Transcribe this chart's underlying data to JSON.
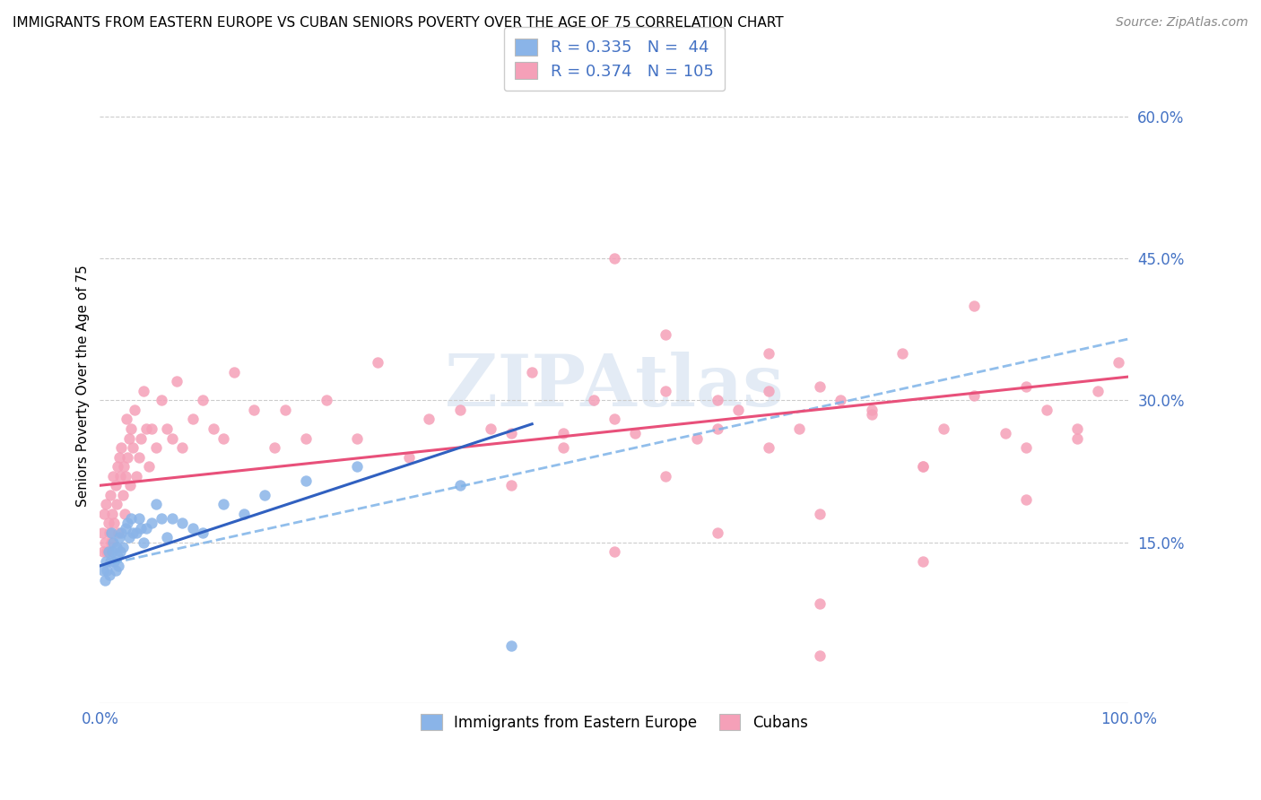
{
  "title": "IMMIGRANTS FROM EASTERN EUROPE VS CUBAN SENIORS POVERTY OVER THE AGE OF 75 CORRELATION CHART",
  "source": "Source: ZipAtlas.com",
  "ylabel": "Seniors Poverty Over the Age of 75",
  "xlim": [
    0,
    1.0
  ],
  "ylim": [
    -0.02,
    0.65
  ],
  "yticks_right": [
    0.15,
    0.3,
    0.45,
    0.6
  ],
  "yticklabels_right": [
    "15.0%",
    "30.0%",
    "45.0%",
    "60.0%"
  ],
  "blue_R": "0.335",
  "blue_N": "44",
  "pink_R": "0.374",
  "pink_N": "105",
  "blue_color": "#8AB4E8",
  "pink_color": "#F5A0B8",
  "trend_blue_color": "#3060C0",
  "trend_pink_color": "#E8507A",
  "trend_dash_color": "#7EB3E8",
  "legend_label_blue": "Immigrants from Eastern Europe",
  "legend_label_pink": "Cubans",
  "watermark": "ZIPAtlas",
  "background_color": "#FFFFFF",
  "grid_color": "#CCCCCC",
  "blue_line_x": [
    0.0,
    0.42
  ],
  "blue_line_y_start": 0.125,
  "blue_line_y_end": 0.275,
  "pink_line_x": [
    0.0,
    1.0
  ],
  "pink_line_y_start": 0.21,
  "pink_line_y_end": 0.325,
  "dash_line_x": [
    0.0,
    1.0
  ],
  "dash_line_y_start": 0.125,
  "dash_line_y_end": 0.365,
  "blue_scatter_x": [
    0.003,
    0.005,
    0.006,
    0.007,
    0.008,
    0.009,
    0.01,
    0.011,
    0.012,
    0.013,
    0.014,
    0.015,
    0.016,
    0.017,
    0.018,
    0.019,
    0.02,
    0.021,
    0.022,
    0.025,
    0.027,
    0.028,
    0.03,
    0.032,
    0.035,
    0.038,
    0.04,
    0.042,
    0.045,
    0.05,
    0.055,
    0.06,
    0.065,
    0.07,
    0.08,
    0.09,
    0.1,
    0.12,
    0.14,
    0.16,
    0.2,
    0.25,
    0.35,
    0.4
  ],
  "blue_scatter_y": [
    0.12,
    0.11,
    0.13,
    0.12,
    0.14,
    0.115,
    0.13,
    0.16,
    0.14,
    0.15,
    0.13,
    0.12,
    0.145,
    0.135,
    0.125,
    0.155,
    0.14,
    0.16,
    0.145,
    0.165,
    0.17,
    0.155,
    0.175,
    0.16,
    0.16,
    0.175,
    0.165,
    0.15,
    0.165,
    0.17,
    0.19,
    0.175,
    0.155,
    0.175,
    0.17,
    0.165,
    0.16,
    0.19,
    0.18,
    0.2,
    0.215,
    0.23,
    0.21,
    0.04
  ],
  "pink_scatter_x": [
    0.002,
    0.003,
    0.004,
    0.005,
    0.006,
    0.007,
    0.008,
    0.009,
    0.01,
    0.011,
    0.012,
    0.013,
    0.014,
    0.015,
    0.016,
    0.017,
    0.018,
    0.019,
    0.02,
    0.021,
    0.022,
    0.023,
    0.024,
    0.025,
    0.026,
    0.027,
    0.028,
    0.029,
    0.03,
    0.032,
    0.034,
    0.035,
    0.038,
    0.04,
    0.042,
    0.045,
    0.048,
    0.05,
    0.055,
    0.06,
    0.065,
    0.07,
    0.075,
    0.08,
    0.09,
    0.1,
    0.11,
    0.12,
    0.13,
    0.15,
    0.17,
    0.18,
    0.2,
    0.22,
    0.25,
    0.27,
    0.3,
    0.32,
    0.35,
    0.38,
    0.4,
    0.42,
    0.45,
    0.48,
    0.5,
    0.52,
    0.55,
    0.58,
    0.6,
    0.62,
    0.65,
    0.68,
    0.7,
    0.72,
    0.75,
    0.78,
    0.8,
    0.82,
    0.85,
    0.88,
    0.9,
    0.92,
    0.95,
    0.97,
    0.99,
    0.55,
    0.65,
    0.75,
    0.85,
    0.95,
    0.7,
    0.8,
    0.9,
    0.5,
    0.6,
    0.7,
    0.8,
    0.9,
    0.4,
    0.45,
    0.5,
    0.55,
    0.6,
    0.65,
    0.7
  ],
  "pink_scatter_y": [
    0.16,
    0.14,
    0.18,
    0.15,
    0.19,
    0.14,
    0.17,
    0.16,
    0.2,
    0.15,
    0.18,
    0.22,
    0.17,
    0.21,
    0.19,
    0.23,
    0.16,
    0.24,
    0.22,
    0.25,
    0.2,
    0.23,
    0.18,
    0.22,
    0.28,
    0.24,
    0.26,
    0.21,
    0.27,
    0.25,
    0.29,
    0.22,
    0.24,
    0.26,
    0.31,
    0.27,
    0.23,
    0.27,
    0.25,
    0.3,
    0.27,
    0.26,
    0.32,
    0.25,
    0.28,
    0.3,
    0.27,
    0.26,
    0.33,
    0.29,
    0.25,
    0.29,
    0.26,
    0.3,
    0.26,
    0.34,
    0.24,
    0.28,
    0.29,
    0.27,
    0.265,
    0.33,
    0.25,
    0.3,
    0.28,
    0.265,
    0.31,
    0.26,
    0.3,
    0.29,
    0.25,
    0.27,
    0.315,
    0.3,
    0.285,
    0.35,
    0.23,
    0.27,
    0.305,
    0.265,
    0.315,
    0.29,
    0.26,
    0.31,
    0.34,
    0.37,
    0.35,
    0.29,
    0.4,
    0.27,
    0.03,
    0.23,
    0.25,
    0.45,
    0.16,
    0.085,
    0.13,
    0.195,
    0.21,
    0.265,
    0.14,
    0.22,
    0.27,
    0.31,
    0.18
  ]
}
